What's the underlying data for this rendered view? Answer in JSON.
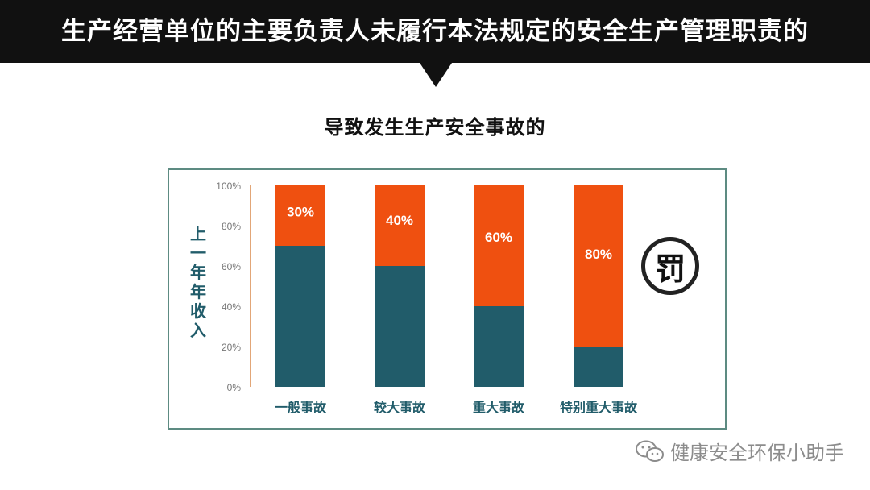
{
  "header": {
    "title": "生产经营单位的主要负责人未履行本法规定的安全生产管理职责的"
  },
  "subtitle": "导致发生生产安全事故的",
  "colors": {
    "header_bg": "#111111",
    "income_bar": "#215c6a",
    "penalty_bar": "#ef5010",
    "axis_line": "#d8884a",
    "frame": "#5d8b82"
  },
  "chart_data": {
    "type": "bar",
    "stacked": true,
    "ylabel": "上一年年收入",
    "ylim": [
      0,
      100
    ],
    "y_ticks": [
      "0%",
      "20%",
      "40%",
      "60%",
      "80%",
      "100%"
    ],
    "grid": false,
    "categories": [
      "一般事故",
      "较大事故",
      "重大事故",
      "特别重大事故"
    ],
    "series": [
      {
        "values": [
          70,
          60,
          40,
          20
        ]
      },
      {
        "values": [
          30,
          40,
          60,
          80
        ],
        "labels": [
          "30%",
          "40%",
          "60%",
          "80%"
        ]
      }
    ]
  },
  "badge": {
    "text": "罚",
    "icon": "penalty-icon"
  },
  "watermark": {
    "text": "健康安全环保小助手",
    "icon": "wechat-icon"
  }
}
